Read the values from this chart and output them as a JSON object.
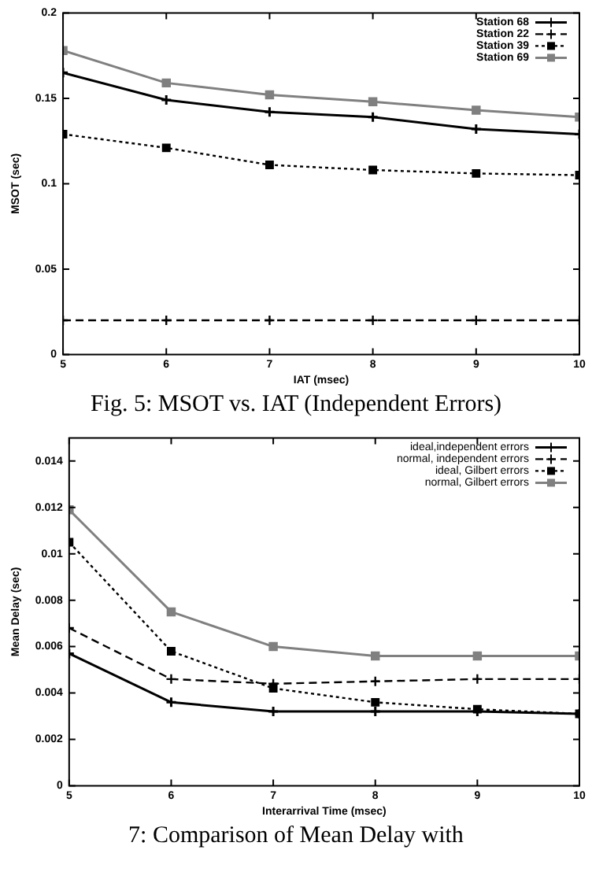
{
  "chart_data": [
    {
      "type": "line",
      "xlabel": "IAT (msec)",
      "ylabel": "MSOT (sec)",
      "x": [
        5,
        6,
        7,
        8,
        9,
        10
      ],
      "xlim": [
        5,
        10
      ],
      "ylim": [
        0,
        0.2
      ],
      "xticks": [
        5,
        6,
        7,
        8,
        9,
        10
      ],
      "yticks": [
        0,
        0.05,
        0.1,
        0.15,
        0.2
      ],
      "grid": false,
      "legend": "top right",
      "series": [
        {
          "name": "Station 68",
          "color": "#000000",
          "marker": "cross",
          "line_style": "solid",
          "values": [
            0.165,
            0.149,
            0.142,
            0.139,
            0.132,
            0.129
          ]
        },
        {
          "name": "Station 22",
          "color": "#000000",
          "marker": "cross",
          "line_style": "dashed",
          "values": [
            0.02,
            0.02,
            0.02,
            0.02,
            0.02,
            0.02
          ]
        },
        {
          "name": "Station 39",
          "color": "#000000",
          "marker": "square",
          "line_style": "dotted",
          "values": [
            0.129,
            0.121,
            0.111,
            0.108,
            0.106,
            0.105
          ]
        },
        {
          "name": "Station 69",
          "color": "#808080",
          "marker": "square",
          "line_style": "solid",
          "values": [
            0.178,
            0.159,
            0.152,
            0.148,
            0.143,
            0.139
          ]
        }
      ],
      "annotations": [
        "Fig. 5: MSOT vs. IAT (Independent Errors)"
      ]
    },
    {
      "type": "line",
      "xlabel": "Interarrival Time (msec)",
      "ylabel": "Mean Delay (sec)",
      "x": [
        5,
        6,
        7,
        8,
        9,
        10
      ],
      "xlim": [
        5,
        10
      ],
      "ylim": [
        0,
        0.015
      ],
      "xticks": [
        5,
        6,
        7,
        8,
        9,
        10
      ],
      "yticks": [
        0,
        0.002,
        0.004,
        0.006,
        0.008,
        0.01,
        0.012,
        0.014
      ],
      "grid": false,
      "legend": "top right",
      "series": [
        {
          "name": "ideal,independent errors",
          "color": "#000000",
          "marker": "cross",
          "line_style": "solid",
          "values": [
            0.0057,
            0.0036,
            0.0032,
            0.0032,
            0.0032,
            0.0031
          ]
        },
        {
          "name": "normal, independent errors",
          "color": "#000000",
          "marker": "cross",
          "line_style": "dashed",
          "values": [
            0.0068,
            0.0046,
            0.0044,
            0.0045,
            0.0046,
            0.0046
          ]
        },
        {
          "name": "ideal, Gilbert errors",
          "color": "#000000",
          "marker": "square",
          "line_style": "dotted",
          "values": [
            0.0105,
            0.0058,
            0.0042,
            0.0036,
            0.0033,
            0.0031
          ]
        },
        {
          "name": "normal, Gilbert errors",
          "color": "#808080",
          "marker": "square",
          "line_style": "solid",
          "values": [
            0.0119,
            0.0075,
            0.006,
            0.0056,
            0.0056,
            0.0056
          ]
        }
      ],
      "annotations": [
        "7: Comparison of Mean Delay with"
      ]
    }
  ]
}
